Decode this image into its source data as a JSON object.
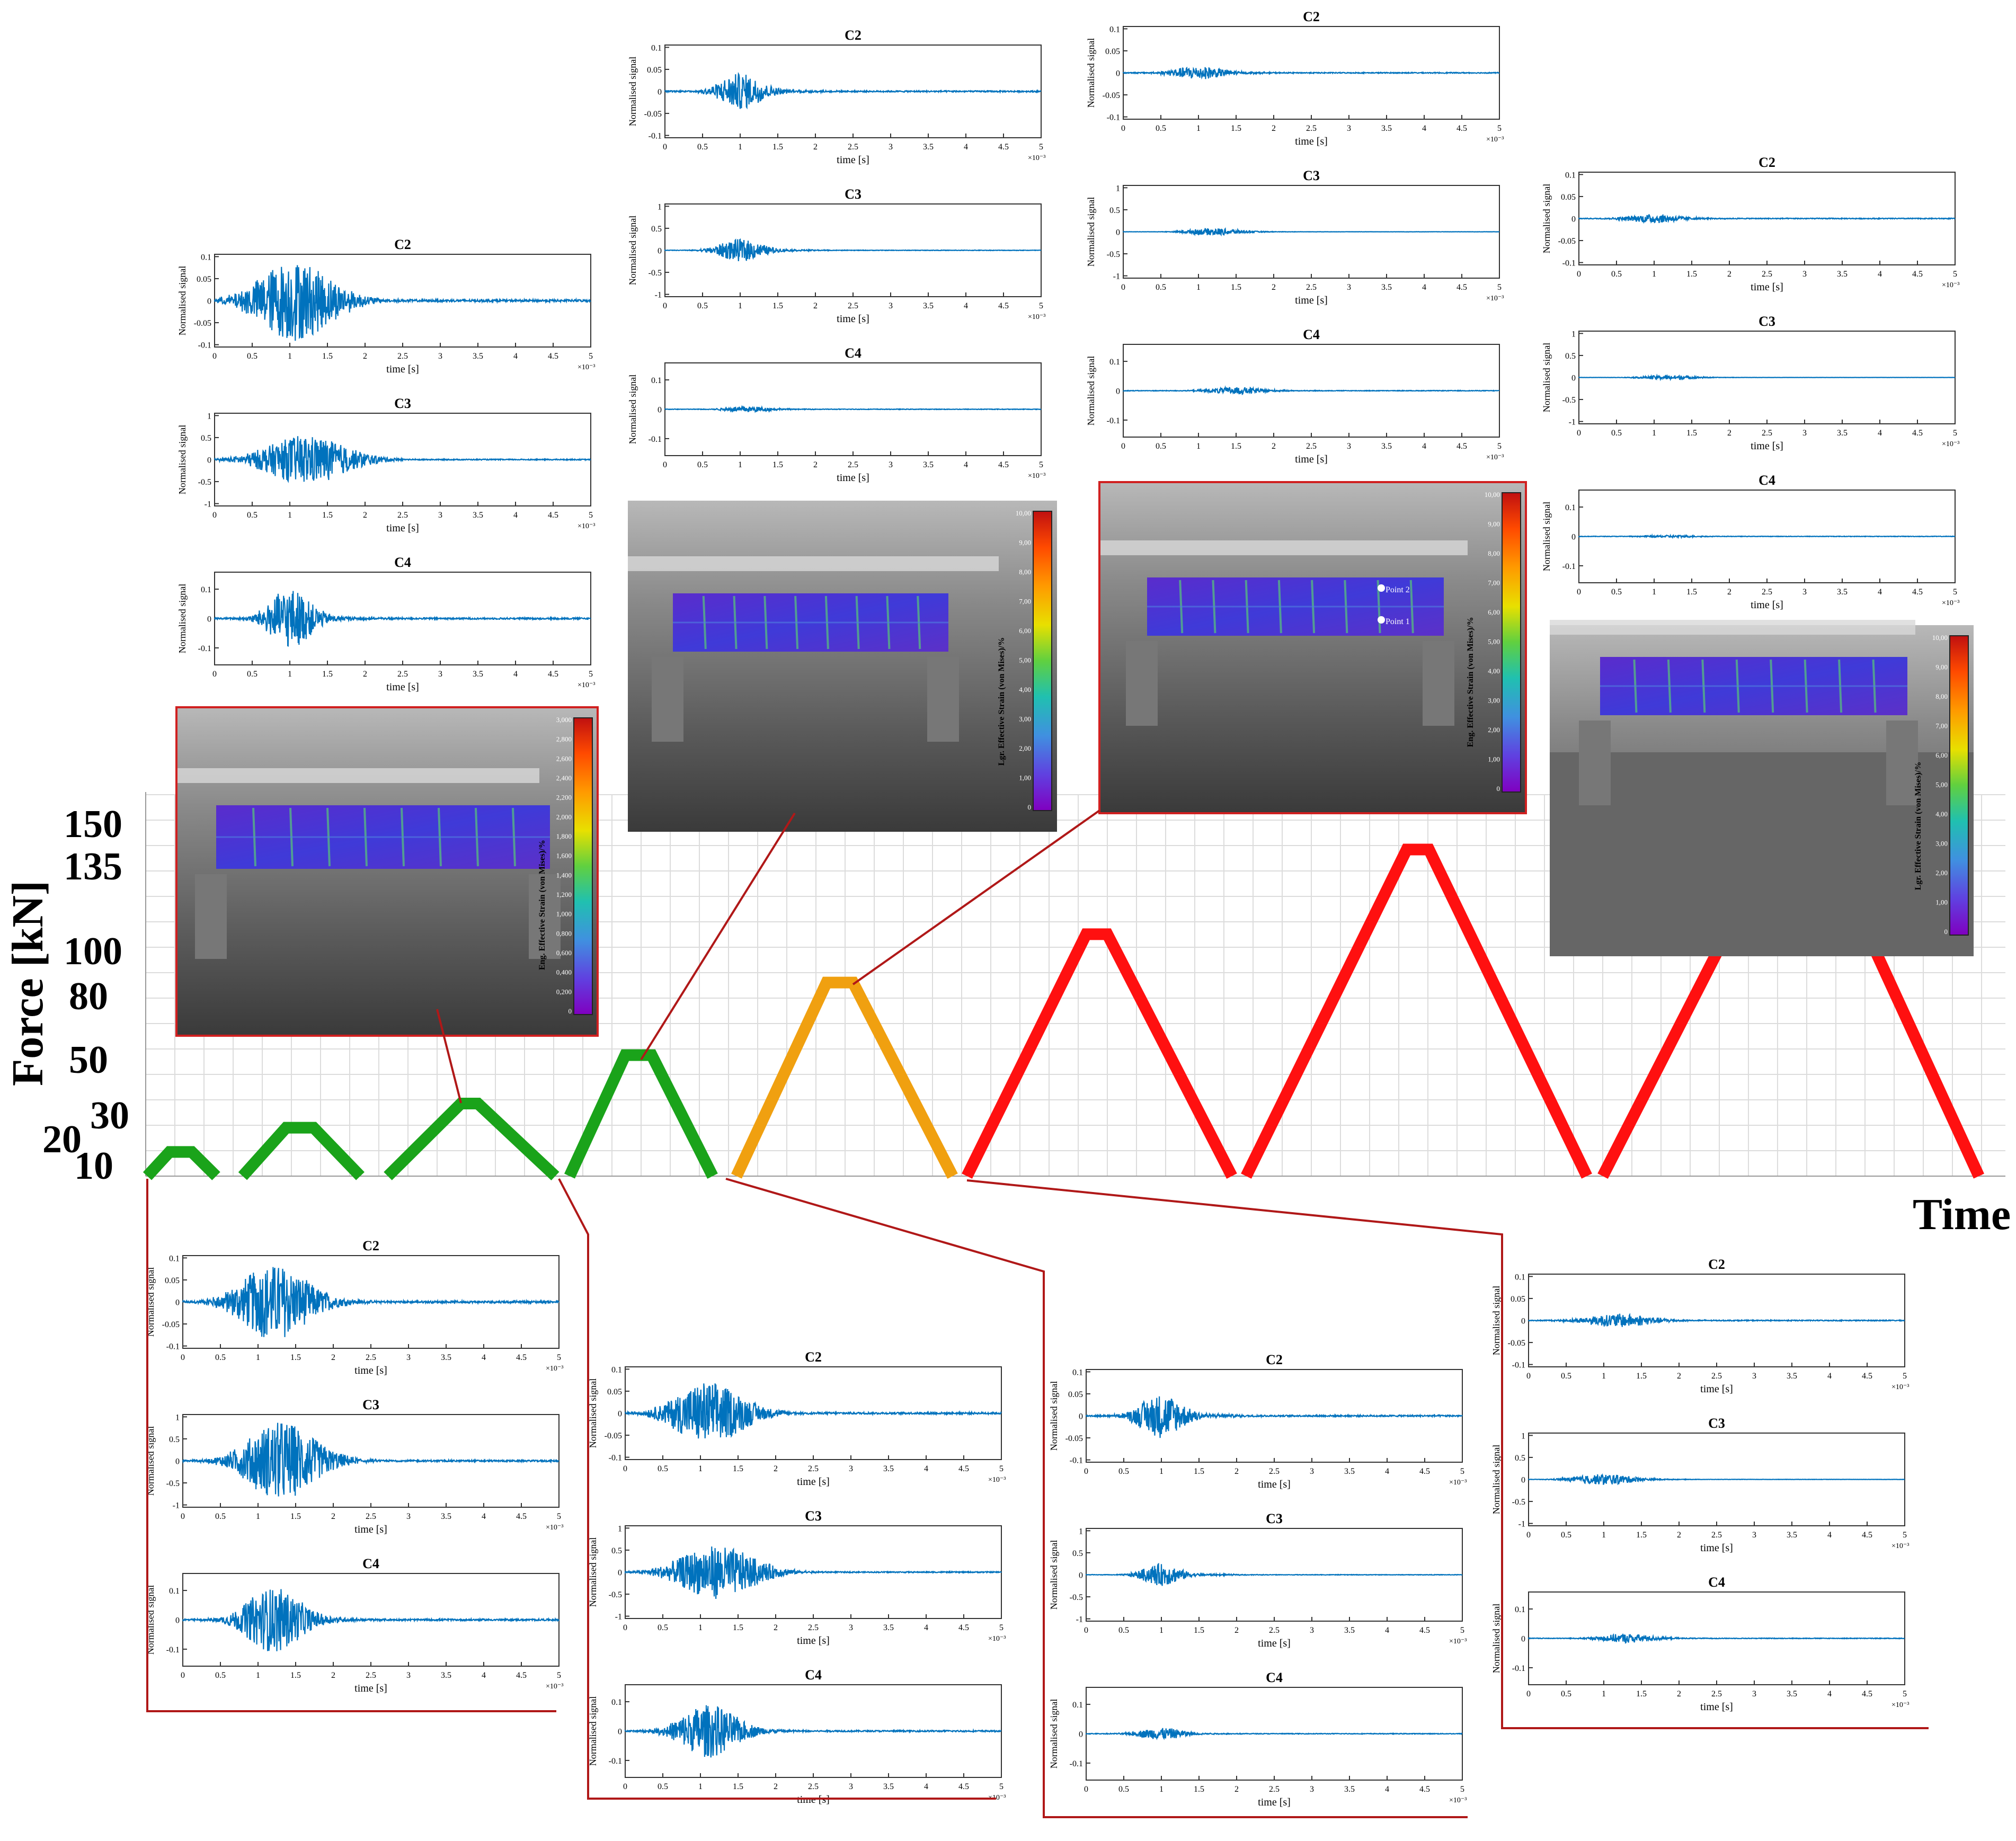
{
  "main_chart": {
    "ylabel": "Force [kN]",
    "xlabel": "Time",
    "y_ticks": [
      "150",
      "135",
      "100",
      "80",
      "50",
      "30",
      "20",
      "10"
    ],
    "colors": {
      "green": "#1aa31a",
      "orange": "#f0a010",
      "red": "#ff1010",
      "connector": "#b01818"
    }
  },
  "chart_data": {
    "type": "line",
    "title": "",
    "xlabel": "Time",
    "ylabel": "Force [kN]",
    "ylim": [
      0,
      150
    ],
    "grid": true,
    "series": [
      {
        "peak": 10,
        "color": "green"
      },
      {
        "peak": 20,
        "color": "green"
      },
      {
        "peak": 30,
        "color": "green"
      },
      {
        "peak": 50,
        "color": "green"
      },
      {
        "peak": 80,
        "color": "orange"
      },
      {
        "peak": 100,
        "color": "red"
      },
      {
        "peak": 135,
        "color": "red"
      },
      {
        "peak": 150,
        "color": "red"
      }
    ]
  },
  "signal_plot": {
    "ylabel": "Normalised signal",
    "xlabel": "time [s]",
    "xlim": [
      0,
      5
    ],
    "x_ticks": [
      "0",
      "0.5",
      "1",
      "1.5",
      "2",
      "2.5",
      "3",
      "3.5",
      "4",
      "4.5",
      "5"
    ],
    "exponent": "×10⁻³",
    "y_ticks_small": [
      "0.1",
      "0.05",
      "0",
      "-0.05",
      "-0.1"
    ],
    "y_ticks_med": [
      "0.1",
      "0",
      "-0.1"
    ],
    "y_ticks_large": [
      "1",
      "0.5",
      "0",
      "-0.5",
      "-1"
    ],
    "trace_color": "#0072bd"
  },
  "signal_groups": [
    {
      "id": "g10",
      "plots": [
        {
          "title": "C2",
          "ticks": "small",
          "amp": 0.085,
          "center": 1.2,
          "width": 0.55
        },
        {
          "title": "C3",
          "ticks": "large",
          "amp": 0.9,
          "center": 1.3,
          "width": 0.55
        },
        {
          "title": "C4",
          "ticks": "med",
          "amp": 0.11,
          "center": 1.2,
          "width": 0.45
        }
      ]
    },
    {
      "id": "g20",
      "plots": [
        {
          "title": "C2",
          "ticks": "small",
          "amp": 0.07,
          "center": 1.1,
          "width": 0.55
        },
        {
          "title": "C3",
          "ticks": "large",
          "amp": 0.6,
          "center": 1.2,
          "width": 0.6
        },
        {
          "title": "C4",
          "ticks": "med",
          "amp": 0.09,
          "center": 1.1,
          "width": 0.45
        }
      ]
    },
    {
      "id": "g30",
      "plots": [
        {
          "title": "C2",
          "ticks": "small",
          "amp": 0.09,
          "center": 1.05,
          "width": 0.6
        },
        {
          "title": "C3",
          "ticks": "large",
          "amp": 0.55,
          "center": 1.2,
          "width": 0.65
        },
        {
          "title": "C4",
          "ticks": "med",
          "amp": 0.1,
          "center": 1.0,
          "width": 0.35
        }
      ]
    },
    {
      "id": "g50",
      "plots": [
        {
          "title": "C2",
          "ticks": "small",
          "amp": 0.05,
          "center": 1.0,
          "width": 0.35
        },
        {
          "title": "C3",
          "ticks": "large",
          "amp": 0.25,
          "center": 1.0,
          "width": 0.3
        },
        {
          "title": "C4",
          "ticks": "med",
          "amp": 0.02,
          "center": 1.0,
          "width": 0.35
        }
      ]
    },
    {
      "id": "g80",
      "plots": [
        {
          "title": "C2",
          "ticks": "small",
          "amp": 0.015,
          "center": 1.2,
          "width": 0.5
        },
        {
          "title": "C3",
          "ticks": "large",
          "amp": 0.12,
          "center": 1.0,
          "width": 0.45
        },
        {
          "title": "C4",
          "ticks": "med",
          "amp": 0.015,
          "center": 1.3,
          "width": 0.4
        }
      ]
    },
    {
      "id": "g100",
      "plots": [
        {
          "title": "C2",
          "ticks": "small",
          "amp": 0.04,
          "center": 1.0,
          "width": 0.35
        },
        {
          "title": "C3",
          "ticks": "large",
          "amp": 0.25,
          "center": 1.0,
          "width": 0.35
        },
        {
          "title": "C4",
          "ticks": "med",
          "amp": 0.01,
          "center": 1.1,
          "width": 0.35
        }
      ]
    },
    {
      "id": "g135",
      "plots": [
        {
          "title": "C2",
          "ticks": "small",
          "amp": 0.015,
          "center": 1.0,
          "width": 0.4
        },
        {
          "title": "C3",
          "ticks": "large",
          "amp": 0.08,
          "center": 1.2,
          "width": 0.4
        },
        {
          "title": "C4",
          "ticks": "med",
          "amp": 0.012,
          "center": 1.5,
          "width": 0.4
        }
      ]
    },
    {
      "id": "g150",
      "plots": [
        {
          "title": "C2",
          "ticks": "small",
          "amp": 0.01,
          "center": 1.0,
          "width": 0.4
        },
        {
          "title": "C3",
          "ticks": "large",
          "amp": 0.05,
          "center": 1.2,
          "width": 0.4
        },
        {
          "title": "C4",
          "ticks": "med",
          "amp": 0.004,
          "center": 1.2,
          "width": 0.4
        }
      ]
    }
  ],
  "dic_images": [
    {
      "id": "dic30",
      "colorbar_label": "Eng. Effective Strain (von Mises)/%",
      "colorbar_ticks": [
        "3,000",
        "2,800",
        "2,600",
        "2,400",
        "2,200",
        "2,000",
        "1,800",
        "1,600",
        "1,400",
        "1,200",
        "1,000",
        "0,800",
        "0,600",
        "0,400",
        "0,200",
        "0"
      ]
    },
    {
      "id": "dic50",
      "colorbar_label": "Lgr. Effective Strain (von Mises)/%",
      "colorbar_ticks": [
        "10,00",
        "9,00",
        "8,00",
        "7,00",
        "6,00",
        "5,00",
        "4,00",
        "3,00",
        "2,00",
        "1,00",
        "0"
      ]
    },
    {
      "id": "dic80",
      "colorbar_label": "Eng. Effective Strain (von Mises)/%",
      "colorbar_ticks": [
        "10,00",
        "9,00",
        "8,00",
        "7,00",
        "6,00",
        "5,00",
        "4,00",
        "3,00",
        "2,00",
        "1,00",
        "0"
      ],
      "points": [
        "Point 2",
        "Point 1"
      ]
    },
    {
      "id": "dic150",
      "colorbar_label": "Lgr. Effective Strain (von Mises)/%",
      "colorbar_ticks": [
        "10,00",
        "9,00",
        "8,00",
        "7,00",
        "6,00",
        "5,00",
        "4,00",
        "3,00",
        "2,00",
        "1,00",
        "0"
      ]
    }
  ]
}
